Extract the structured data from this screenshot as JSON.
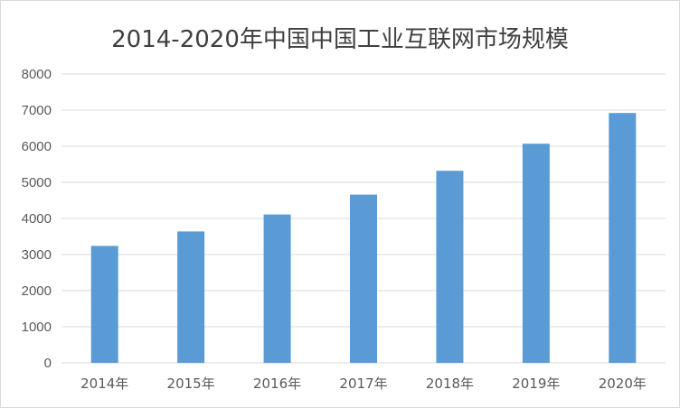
{
  "chart_data": {
    "type": "bar",
    "title": "2014-2020年中国中国工业互联网市场规模",
    "categories": [
      "2014年",
      "2015年",
      "2016年",
      "2017年",
      "2018年",
      "2019年",
      "2020年"
    ],
    "values": [
      3240,
      3640,
      4110,
      4660,
      5320,
      6070,
      6920
    ],
    "xlabel": "",
    "ylabel": "",
    "ylim": [
      0,
      8000
    ],
    "yticks": [
      0,
      1000,
      2000,
      3000,
      4000,
      5000,
      6000,
      7000,
      8000
    ],
    "grid": true,
    "legend": "none",
    "bar_color": "#5b9bd5",
    "grid_color": "#d9d9d9"
  }
}
